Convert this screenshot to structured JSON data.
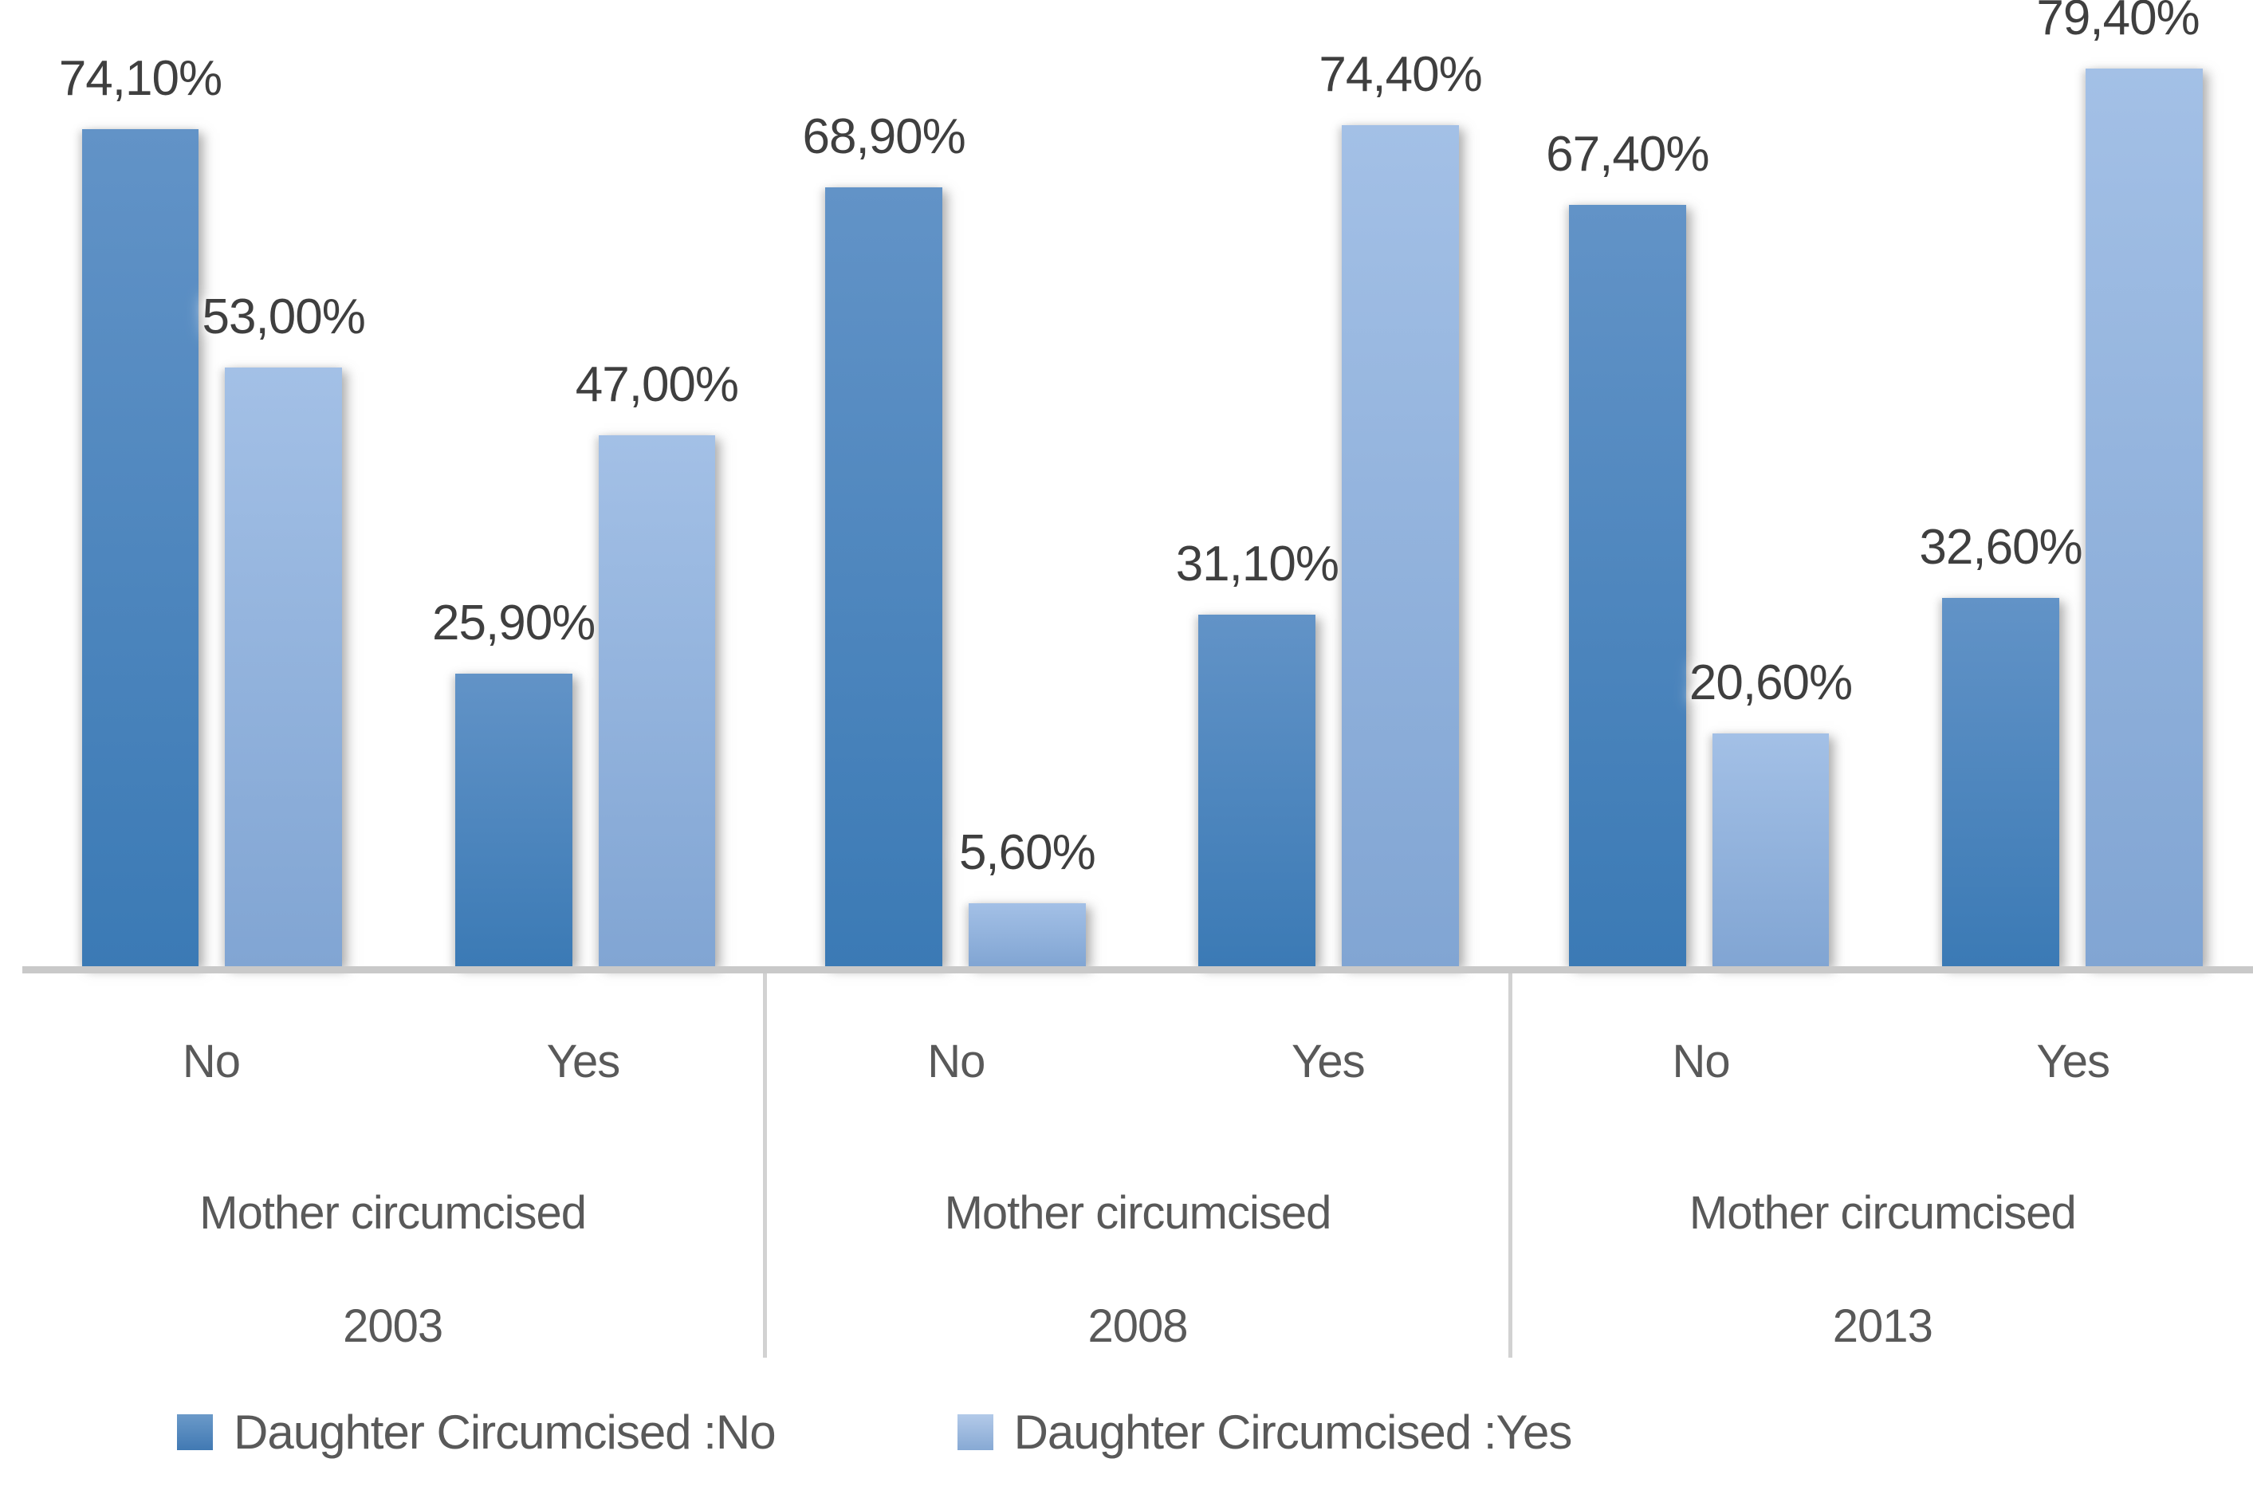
{
  "chart_data": {
    "type": "bar",
    "title": "",
    "xlabel": "",
    "ylabel": "",
    "unit": "%",
    "decimal_separator": "comma",
    "legend_position": "bottom",
    "y_axis": {
      "visible": false,
      "render_max": 85.5
    },
    "grid": false,
    "groups": [
      "2003",
      "2008",
      "2013"
    ],
    "group_sublabel": "Mother circumcised",
    "subgroups": [
      "No",
      "Yes"
    ],
    "series": [
      {
        "name": "Daughter Circumcised :No",
        "color_top": "#6293c7",
        "color_bottom": "#3b7ab5",
        "values": {
          "2003": {
            "No": 74.1,
            "Yes": 25.9
          },
          "2008": {
            "No": 68.9,
            "Yes": 31.1
          },
          "2013": {
            "No": 67.4,
            "Yes": 32.6
          }
        }
      },
      {
        "name": "Daughter Circumcised :Yes",
        "color_top": "#a3c0e6",
        "color_bottom": "#81a5d3",
        "values": {
          "2003": {
            "No": 53.0,
            "Yes": 47.0
          },
          "2008": {
            "No": 5.6,
            "Yes": 74.4
          },
          "2013": {
            "No": 20.6,
            "Yes": 79.4
          }
        }
      }
    ],
    "bars": [
      {
        "year": "2003",
        "mother_circumcised": "No",
        "daughter_circumcised": "No",
        "value": 74.1,
        "label": "74,10%"
      },
      {
        "year": "2003",
        "mother_circumcised": "No",
        "daughter_circumcised": "Yes",
        "value": 53.0,
        "label": "53,00%"
      },
      {
        "year": "2003",
        "mother_circumcised": "Yes",
        "daughter_circumcised": "No",
        "value": 25.9,
        "label": "25,90%"
      },
      {
        "year": "2003",
        "mother_circumcised": "Yes",
        "daughter_circumcised": "Yes",
        "value": 47.0,
        "label": "47,00%"
      },
      {
        "year": "2008",
        "mother_circumcised": "No",
        "daughter_circumcised": "No",
        "value": 68.9,
        "label": "68,90%"
      },
      {
        "year": "2008",
        "mother_circumcised": "No",
        "daughter_circumcised": "Yes",
        "value": 5.6,
        "label": "5,60%"
      },
      {
        "year": "2008",
        "mother_circumcised": "Yes",
        "daughter_circumcised": "No",
        "value": 31.1,
        "label": "31,10%"
      },
      {
        "year": "2008",
        "mother_circumcised": "Yes",
        "daughter_circumcised": "Yes",
        "value": 74.4,
        "label": "74,40%"
      },
      {
        "year": "2013",
        "mother_circumcised": "No",
        "daughter_circumcised": "No",
        "value": 67.4,
        "label": "67,40%"
      },
      {
        "year": "2013",
        "mother_circumcised": "No",
        "daughter_circumcised": "Yes",
        "value": 20.6,
        "label": "20,60%"
      },
      {
        "year": "2013",
        "mother_circumcised": "Yes",
        "daughter_circumcised": "No",
        "value": 32.6,
        "label": "32,60%"
      },
      {
        "year": "2013",
        "mother_circumcised": "Yes",
        "daughter_circumcised": "Yes",
        "value": 79.4,
        "label": "79,40%"
      }
    ]
  },
  "legend": {
    "items": [
      {
        "label": "Daughter Circumcised :No"
      },
      {
        "label": "Daughter Circumcised :Yes"
      }
    ]
  },
  "colors": {
    "series_no_top": "#6293c7",
    "series_no_bottom": "#3b7ab5",
    "series_yes_top": "#a3c0e6",
    "series_yes_bottom": "#81a5d3",
    "axis_line": "#c9c9c9",
    "group_divider": "#d2d2d2",
    "data_label_text": "#3f3f3f",
    "category_text": "#595959",
    "background": "#ffffff"
  }
}
